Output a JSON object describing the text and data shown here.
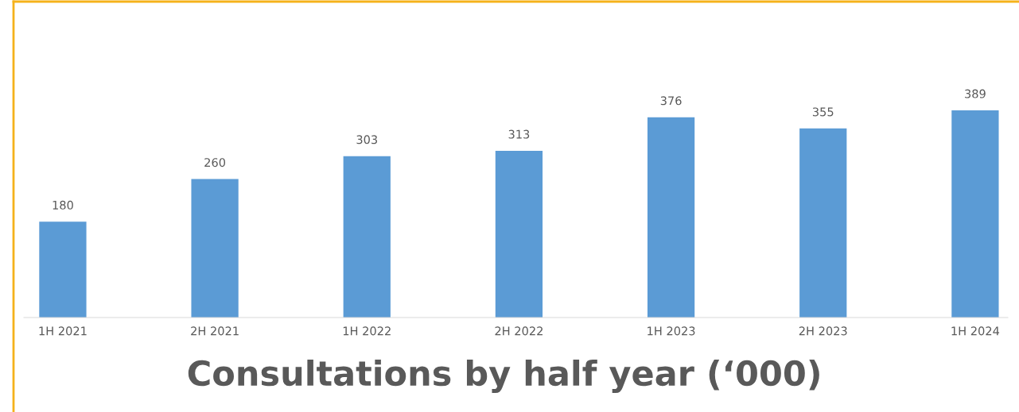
{
  "chart_data": {
    "type": "bar",
    "title": "Consultations by half year (‘000)",
    "categories": [
      "1H 2021",
      "2H 2021",
      "1H 2022",
      "2H 2022",
      "1H 2023",
      "2H 2023",
      "1H 2024"
    ],
    "values": [
      180,
      260,
      303,
      313,
      376,
      355,
      389
    ],
    "color": "#5b9bd5",
    "data_labels": true,
    "grid": false,
    "legend": false
  }
}
